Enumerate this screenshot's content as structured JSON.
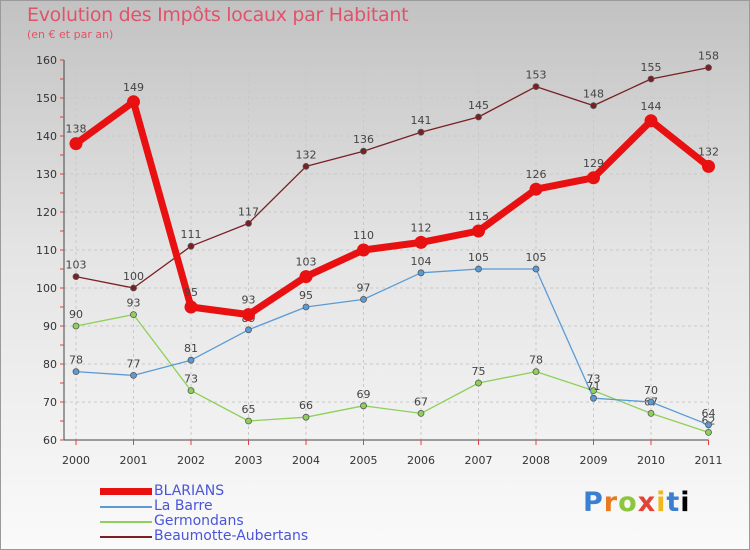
{
  "chart_data": {
    "type": "line",
    "title": "Evolution des Impôts locaux par Habitant",
    "subtitle": "(en € et par an)",
    "xlabel": "",
    "ylabel": "",
    "ylim": [
      60,
      160
    ],
    "yticks": [
      60,
      70,
      80,
      90,
      100,
      110,
      120,
      130,
      140,
      150,
      160
    ],
    "grid": true,
    "x": [
      "2000",
      "2001",
      "2002",
      "2003",
      "2004",
      "2005",
      "2006",
      "2007",
      "2008",
      "2009",
      "2010",
      "2011"
    ],
    "series": [
      {
        "name": "Beaumotte-Aubertans",
        "color": "#7a1f24",
        "values": [
          103,
          100,
          111,
          117,
          132,
          136,
          141,
          145,
          153,
          148,
          155,
          158
        ]
      },
      {
        "name": "Germondans",
        "color": "#8ed05a",
        "values": [
          90,
          93,
          73,
          65,
          66,
          69,
          67,
          75,
          78,
          73,
          67,
          62
        ]
      },
      {
        "name": "La Barre",
        "color": "#5b9bd5",
        "values": [
          78,
          77,
          81,
          89,
          95,
          97,
          104,
          105,
          105,
          71,
          70,
          64
        ]
      },
      {
        "name": "BLARIANS",
        "color": "#e81010",
        "values": [
          138,
          149,
          95,
          93,
          103,
          110,
          112,
          115,
          126,
          129,
          144,
          132
        ]
      }
    ]
  },
  "legend": {
    "items": [
      {
        "label": "BLARIANS",
        "color": "#e81010"
      },
      {
        "label": "La Barre",
        "color": "#5b9bd5"
      },
      {
        "label": "Germondans",
        "color": "#8ed05a"
      },
      {
        "label": "Beaumotte-Aubertans",
        "color": "#7a1f24"
      }
    ]
  },
  "logo": {
    "chars": [
      "P",
      "r",
      "o",
      "x",
      "i",
      "t",
      "i"
    ]
  }
}
